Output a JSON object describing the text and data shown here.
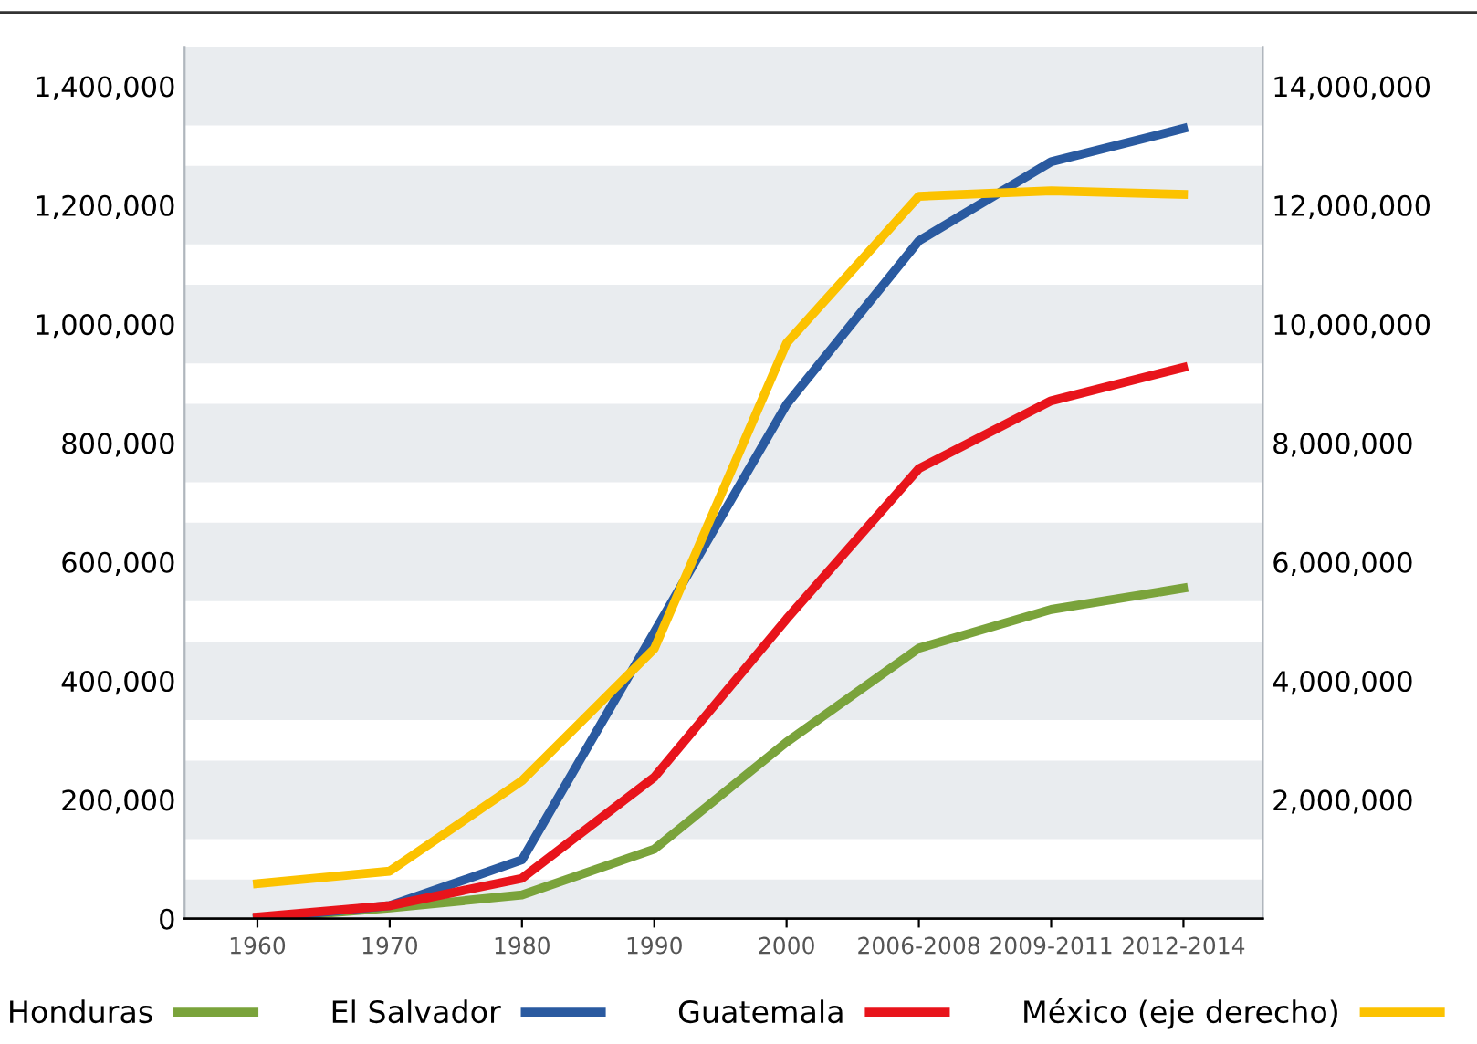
{
  "chart_data": {
    "type": "line",
    "categories": [
      "1960",
      "1970",
      "1980",
      "1990",
      "2000",
      "2006-2008",
      "2009-2011",
      "2012-2014"
    ],
    "series": [
      {
        "name": "Honduras",
        "color": "#7aa33b",
        "values": [
          0,
          18000,
          40000,
          117000,
          297000,
          455000,
          520000,
          556000
        ]
      },
      {
        "name": "El Salvador",
        "color": "#2a5aa0",
        "values": [
          0,
          22000,
          99000,
          482000,
          865000,
          1140000,
          1273000,
          1329000
        ]
      },
      {
        "name": "Guatemala",
        "color": "#e8141b",
        "values": [
          3000,
          22000,
          68000,
          238000,
          504000,
          757000,
          871000,
          927000
        ]
      },
      {
        "name": "México (eje derecho)",
        "color": "#fcc200",
        "axis": "y2",
        "values": [
          590000,
          800000,
          2320000,
          4540000,
          9680000,
          12150000,
          12240000,
          12180000
        ]
      }
    ],
    "ylim": [
      0,
      1466000
    ],
    "yticks": [
      {
        "value": 0,
        "label": "0"
      },
      {
        "value": 200000,
        "label": "200,000"
      },
      {
        "value": 400000,
        "label": "400,000"
      },
      {
        "value": 600000,
        "label": "600,000"
      },
      {
        "value": 800000,
        "label": "800,000"
      },
      {
        "value": 1000000,
        "label": "1,000,000"
      },
      {
        "value": 1200000,
        "label": "1,200,000"
      },
      {
        "value": 1400000,
        "label": "1,400,000"
      }
    ],
    "y2lim": [
      0,
      14660000
    ],
    "y2ticks": [
      {
        "value": 2000000,
        "label": "2,000,000"
      },
      {
        "value": 4000000,
        "label": "4,000,000"
      },
      {
        "value": 6000000,
        "label": "6,000,000"
      },
      {
        "value": 8000000,
        "label": "8,000,000"
      },
      {
        "value": 10000000,
        "label": "10,000,000"
      },
      {
        "value": 12000000,
        "label": "12,000,000"
      },
      {
        "value": 14000000,
        "label": "14,000,000"
      }
    ],
    "bands": [
      {
        "axis": "y",
        "from": 0,
        "to": 66000,
        "color": "#e9ecef"
      },
      {
        "axis": "y",
        "from": 134000,
        "to": 266000,
        "color": "#e9ecef"
      },
      {
        "axis": "y",
        "from": 334000,
        "to": 466000,
        "color": "#e9ecef"
      },
      {
        "axis": "y",
        "from": 534000,
        "to": 666000,
        "color": "#e9ecef"
      },
      {
        "axis": "y",
        "from": 734000,
        "to": 866000,
        "color": "#e9ecef"
      },
      {
        "axis": "y",
        "from": 934000,
        "to": 1066000,
        "color": "#e9ecef"
      },
      {
        "axis": "y",
        "from": 1134000,
        "to": 1266000,
        "color": "#e9ecef"
      },
      {
        "axis": "y",
        "from": 1334000,
        "to": 1466000,
        "color": "#e9ecef"
      }
    ],
    "legend": "bottom",
    "marker": "none",
    "line_style": "solid"
  }
}
